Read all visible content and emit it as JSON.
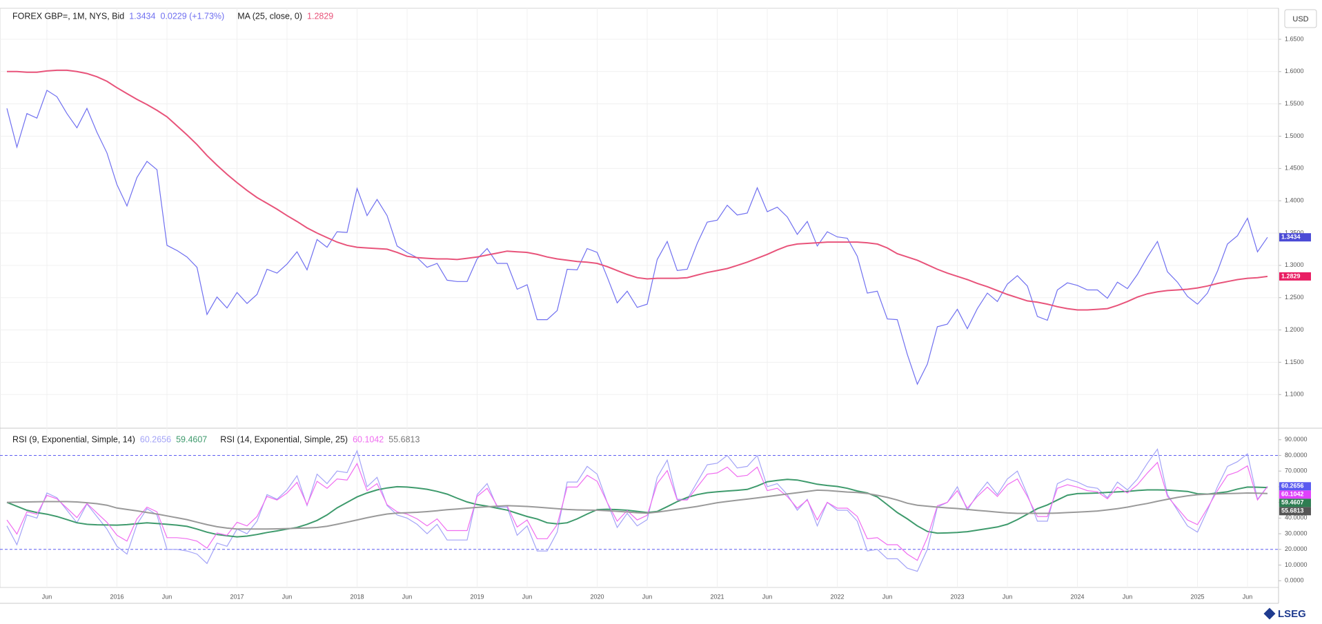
{
  "currency": "USD",
  "brand": "LSEG",
  "chart_data": [
    {
      "type": "line",
      "change_label": "0.0229 (+1.73%)",
      "ylim": [
        1.049,
        1.698
      ],
      "yticks": [
        {
          "value": 1.1,
          "label": "1.1000"
        },
        {
          "value": 1.15,
          "label": "1.1500"
        },
        {
          "value": 1.2,
          "label": "1.2000"
        },
        {
          "value": 1.25,
          "label": "1.2500"
        },
        {
          "value": 1.3,
          "label": "1.3000"
        },
        {
          "value": 1.35,
          "label": "1.3500"
        },
        {
          "value": 1.4,
          "label": "1.4000"
        },
        {
          "value": 1.45,
          "label": "1.4500"
        },
        {
          "value": 1.5,
          "label": "1.5000"
        },
        {
          "value": 1.55,
          "label": "1.5500"
        },
        {
          "value": 1.6,
          "label": "1.6000"
        },
        {
          "value": 1.65,
          "label": "1.6500"
        }
      ],
      "grid": true,
      "series": [
        {
          "name": "FOREX GBP=, 1M, NYS, Bid",
          "color": "#6f6ff0",
          "badge_color": "#4b4bd6",
          "values": [
            1.543,
            1.483,
            1.535,
            1.528,
            1.571,
            1.561,
            1.535,
            1.513,
            1.543,
            1.506,
            1.474,
            1.425,
            1.392,
            1.436,
            1.461,
            1.448,
            1.331,
            1.323,
            1.313,
            1.297,
            1.224,
            1.251,
            1.234,
            1.258,
            1.241,
            1.255,
            1.294,
            1.288,
            1.302,
            1.321,
            1.293,
            1.34,
            1.328,
            1.352,
            1.351,
            1.419,
            1.377,
            1.402,
            1.377,
            1.33,
            1.32,
            1.312,
            1.297,
            1.303,
            1.277,
            1.275,
            1.275,
            1.31,
            1.326,
            1.303,
            1.303,
            1.263,
            1.27,
            1.216,
            1.216,
            1.23,
            1.294,
            1.293,
            1.326,
            1.32,
            1.282,
            1.242,
            1.26,
            1.235,
            1.24,
            1.309,
            1.337,
            1.292,
            1.294,
            1.334,
            1.367,
            1.37,
            1.393,
            1.378,
            1.381,
            1.42,
            1.383,
            1.39,
            1.375,
            1.348,
            1.368,
            1.33,
            1.352,
            1.344,
            1.342,
            1.314,
            1.257,
            1.26,
            1.217,
            1.216,
            1.162,
            1.116,
            1.147,
            1.205,
            1.209,
            1.232,
            1.202,
            1.233,
            1.257,
            1.244,
            1.271,
            1.284,
            1.268,
            1.221,
            1.215,
            1.262,
            1.273,
            1.269,
            1.262,
            1.262,
            1.249,
            1.274,
            1.264,
            1.286,
            1.313,
            1.337,
            1.29,
            1.274,
            1.252,
            1.24,
            1.257,
            1.291,
            1.333,
            1.346,
            1.373,
            1.321,
            1.3434
          ]
        },
        {
          "name": "MA (25, close, 0)",
          "color": "#e8537a",
          "badge_color": "#e91e63",
          "values": [
            1.6,
            1.6,
            1.599,
            1.599,
            1.601,
            1.602,
            1.602,
            1.6,
            1.597,
            1.592,
            1.585,
            1.575,
            1.566,
            1.557,
            1.549,
            1.54,
            1.53,
            1.516,
            1.502,
            1.487,
            1.47,
            1.455,
            1.441,
            1.428,
            1.416,
            1.405,
            1.396,
            1.387,
            1.377,
            1.368,
            1.358,
            1.35,
            1.343,
            1.336,
            1.331,
            1.328,
            1.327,
            1.326,
            1.325,
            1.32,
            1.314,
            1.312,
            1.311,
            1.31,
            1.31,
            1.309,
            1.311,
            1.313,
            1.316,
            1.319,
            1.322,
            1.321,
            1.32,
            1.317,
            1.313,
            1.31,
            1.308,
            1.306,
            1.305,
            1.303,
            1.298,
            1.292,
            1.286,
            1.281,
            1.279,
            1.28,
            1.28,
            1.28,
            1.281,
            1.285,
            1.289,
            1.292,
            1.295,
            1.3,
            1.305,
            1.311,
            1.317,
            1.324,
            1.33,
            1.333,
            1.334,
            1.335,
            1.336,
            1.336,
            1.336,
            1.336,
            1.335,
            1.333,
            1.327,
            1.318,
            1.313,
            1.308,
            1.301,
            1.294,
            1.288,
            1.283,
            1.278,
            1.272,
            1.267,
            1.261,
            1.255,
            1.25,
            1.245,
            1.243,
            1.24,
            1.236,
            1.233,
            1.231,
            1.231,
            1.232,
            1.233,
            1.238,
            1.244,
            1.251,
            1.256,
            1.259,
            1.261,
            1.262,
            1.263,
            1.265,
            1.268,
            1.272,
            1.275,
            1.278,
            1.28,
            1.281,
            1.2829
          ]
        }
      ]
    },
    {
      "type": "line",
      "categories": [
        null,
        null,
        null,
        null,
        "Jun",
        null,
        null,
        null,
        null,
        null,
        null,
        "2016",
        null,
        null,
        null,
        null,
        "Jun",
        null,
        null,
        null,
        null,
        null,
        null,
        "2017",
        null,
        null,
        null,
        null,
        "Jun",
        null,
        null,
        null,
        null,
        null,
        null,
        "2018",
        null,
        null,
        null,
        null,
        "Jun",
        null,
        null,
        null,
        null,
        null,
        null,
        "2019",
        null,
        null,
        null,
        null,
        "Jun",
        null,
        null,
        null,
        null,
        null,
        null,
        "2020",
        null,
        null,
        null,
        null,
        "Jun",
        null,
        null,
        null,
        null,
        null,
        null,
        "2021",
        null,
        null,
        null,
        null,
        "Jun",
        null,
        null,
        null,
        null,
        null,
        null,
        "2022",
        null,
        null,
        null,
        null,
        "Jun",
        null,
        null,
        null,
        null,
        null,
        null,
        "2023",
        null,
        null,
        null,
        null,
        "Jun",
        null,
        null,
        null,
        null,
        null,
        null,
        "2024",
        null,
        null,
        null,
        null,
        "Jun",
        null,
        null,
        null,
        null,
        null,
        null,
        "2025",
        null,
        null,
        null,
        null,
        "Jun",
        null,
        null
      ],
      "ylim": [
        -4.3,
        96.5
      ],
      "yticks": [
        {
          "value": 0,
          "label": "0.0000"
        },
        {
          "value": 10,
          "label": "10.0000"
        },
        {
          "value": 20,
          "label": "20.0000"
        },
        {
          "value": 30,
          "label": "30.0000"
        },
        {
          "value": 40,
          "label": "40.0000"
        },
        {
          "value": 50,
          "label": "50.0000"
        },
        {
          "value": 60,
          "label": "60.0000"
        },
        {
          "value": 70,
          "label": "70.0000"
        },
        {
          "value": 80,
          "label": "80.0000"
        },
        {
          "value": 90,
          "label": "90.0000"
        }
      ],
      "hlines": [
        80,
        20
      ],
      "hline_color": "#5c5cf0",
      "series": [
        {
          "name": "RSI (9, Exponential, Simple, 14)",
          "color": "#a3a3f7",
          "badge_color": "#5a5af0",
          "values": [
            35,
            23,
            42,
            40,
            56,
            53,
            45,
            37,
            49,
            41,
            33,
            22,
            17,
            36,
            46,
            42,
            20,
            20,
            19,
            17,
            11,
            24,
            22,
            33,
            30,
            38,
            55,
            52,
            58,
            67,
            48,
            68,
            62,
            70,
            69,
            83,
            60,
            66,
            48,
            42,
            40,
            36,
            30,
            36,
            26,
            26,
            26,
            55,
            62,
            47,
            47,
            29,
            35,
            19,
            19,
            31,
            63,
            63,
            73,
            68,
            50,
            34,
            43,
            35,
            39,
            66,
            77,
            52,
            52,
            63,
            74,
            75,
            80,
            72,
            73,
            80,
            60,
            62,
            55,
            45,
            52,
            35,
            50,
            45,
            45,
            38,
            19,
            20,
            14,
            14,
            8,
            6,
            20,
            47,
            50,
            60,
            45,
            55,
            63,
            55,
            65,
            70,
            55,
            38,
            38,
            62,
            65,
            63,
            60,
            59,
            53,
            63,
            58,
            65,
            75,
            84,
            55,
            45,
            35,
            31,
            45,
            60,
            73,
            76,
            81,
            52,
            60.2656
          ]
        },
        {
          "color": "#3e9a6c",
          "badge_color": "#2e7d52",
          "values": [
            50,
            47.5,
            45,
            43.5,
            42.5,
            41,
            39,
            37,
            36,
            35.7,
            35.6,
            35.5,
            35.8,
            36.4,
            37,
            36.5,
            36,
            35.5,
            34.7,
            33,
            31,
            29.5,
            28.7,
            28,
            28.5,
            29.5,
            30.8,
            31.8,
            33,
            34,
            36,
            38.5,
            42,
            46.5,
            50,
            53.5,
            56,
            58,
            59.2,
            60,
            59.8,
            59.2,
            58.4,
            57,
            55.3,
            52.7,
            50.3,
            48.6,
            47.6,
            46.3,
            45.1,
            43,
            41,
            39.4,
            37,
            36.3,
            37,
            39.5,
            42.6,
            45.4,
            45.6,
            45.4,
            45,
            44.3,
            43.5,
            44.2,
            47.3,
            50.5,
            53.2,
            55,
            56.2,
            56.8,
            57.3,
            57.7,
            58.3,
            60.5,
            63.2,
            64,
            64.7,
            64.3,
            63,
            61.6,
            60.8,
            60.2,
            59,
            57.3,
            56,
            53.5,
            48.5,
            43.5,
            39.5,
            35,
            31.5,
            30.4,
            30.5,
            30.8,
            31.3,
            32.3,
            33.3,
            34.3,
            36,
            39,
            42.5,
            46,
            48.4,
            51.5,
            54.6,
            55.6,
            55.8,
            56,
            56.4,
            56.7,
            57,
            57.6,
            58,
            58,
            57.9,
            57.4,
            57,
            55.5,
            55.3,
            56,
            56.8,
            58.5,
            59.8,
            59.7,
            59.4607
          ]
        },
        {
          "name": "RSI (14, Exponential, Simple, 25)",
          "color": "#f06cf0",
          "badge_color": "#e040fb",
          "values": [
            38.8,
            29.8,
            44,
            42.5,
            54.5,
            52.3,
            46.3,
            40.3,
            49.3,
            43.3,
            37.3,
            29,
            25.3,
            39.5,
            47,
            44,
            27.5,
            27.5,
            26.8,
            25.3,
            20.8,
            30.5,
            29,
            37.3,
            35,
            41,
            53.8,
            51.5,
            56,
            62.8,
            48.5,
            63.5,
            59,
            65,
            64.3,
            74.8,
            57.5,
            62,
            48.5,
            44,
            42.5,
            39.5,
            35,
            39.5,
            32,
            32,
            32,
            53.8,
            59,
            47.8,
            47.8,
            34.3,
            38.8,
            26.8,
            26.8,
            35.8,
            59.8,
            59.8,
            67.3,
            63.5,
            50,
            38,
            44.8,
            38.8,
            41.8,
            62,
            70.3,
            51.5,
            51.5,
            59.8,
            68,
            68.8,
            72.5,
            66.5,
            67.3,
            72.5,
            57.5,
            59,
            53.8,
            46.3,
            51.5,
            38.8,
            50,
            46.3,
            46.3,
            41,
            26.8,
            27.5,
            23,
            23,
            17,
            13,
            27.5,
            47.8,
            50,
            57.5,
            46.3,
            53.8,
            59.8,
            53.8,
            61.3,
            65,
            53.8,
            41,
            41,
            59,
            61.3,
            59.8,
            57.5,
            56.8,
            52.3,
            59.8,
            56,
            61.3,
            68.8,
            75.5,
            53.8,
            46.3,
            38.8,
            35.8,
            46.3,
            57.5,
            67.3,
            69.5,
            73.3,
            51.5,
            60.1042
          ]
        },
        {
          "color": "#999999",
          "badge_color": "#555555",
          "values": [
            50,
            50.2,
            50.3,
            50.4,
            50.5,
            50.5,
            50.5,
            50.3,
            49.8,
            49.2,
            48.2,
            46.4,
            45.5,
            44.6,
            43.6,
            42.6,
            41.4,
            40.2,
            39,
            37.4,
            35.8,
            34.5,
            33.6,
            33,
            33,
            33,
            33,
            33.1,
            33.3,
            33.5,
            33.7,
            34,
            34.8,
            36,
            37.4,
            38.8,
            40.2,
            41.5,
            42.6,
            43.2,
            43.4,
            43.7,
            44.1,
            44.7,
            45.3,
            45.8,
            46.3,
            46.8,
            47.2,
            47.6,
            47.9,
            47.7,
            47.4,
            47,
            46.5,
            46,
            45.5,
            45.2,
            45.1,
            45,
            44.7,
            44.3,
            43.9,
            43.4,
            43.1,
            43.8,
            44.7,
            45.6,
            46.5,
            47.4,
            48.6,
            49.8,
            50.6,
            51.4,
            52.1,
            52.9,
            53.7,
            54.5,
            55.4,
            56.2,
            57,
            57.8,
            57.6,
            57.1,
            56.6,
            56.3,
            55.7,
            54.5,
            53.2,
            51.5,
            49.5,
            48.2,
            47.6,
            47,
            46.5,
            46.1,
            45.5,
            44.9,
            44.4,
            43.8,
            43.3,
            43,
            43,
            43,
            43,
            43.2,
            43.5,
            43.8,
            44.1,
            44.5,
            45.2,
            46,
            47,
            48.2,
            49.3,
            50.7,
            52,
            53.2,
            54.2,
            54.9,
            55.2,
            55.4,
            55.6,
            55.8,
            56,
            55.9,
            55.6813
          ]
        }
      ]
    }
  ]
}
